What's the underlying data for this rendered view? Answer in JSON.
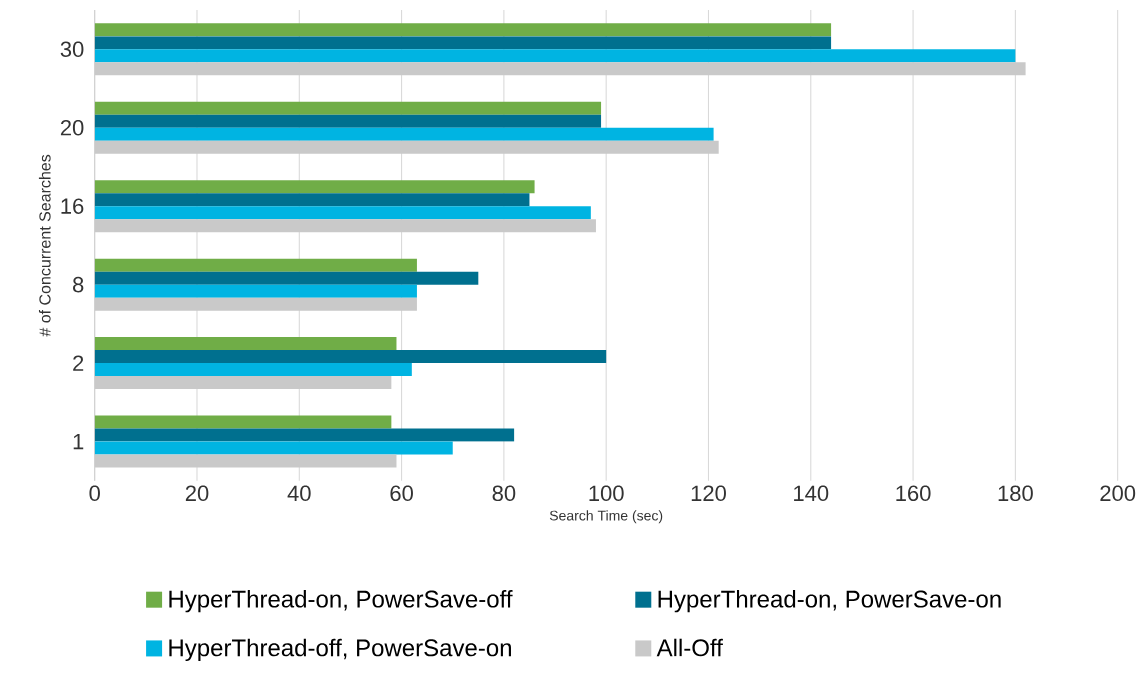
{
  "chart_data": {
    "type": "bar",
    "orientation": "horizontal",
    "xlabel": "Search Time (sec)",
    "ylabel": "# of Concurrent Searches",
    "categories": [
      "30",
      "20",
      "16",
      "8",
      "2",
      "1"
    ],
    "series": [
      {
        "name": "HyperThread-on, PowerSave-off",
        "color": "#70ad47",
        "values": [
          144,
          99,
          86,
          63,
          59,
          58
        ]
      },
      {
        "name": "HyperThread-on, PowerSave-on",
        "color": "#00708f",
        "values": [
          144,
          99,
          85,
          75,
          100,
          82
        ]
      },
      {
        "name": "HyperThread-off, PowerSave-on",
        "color": "#00b4e2",
        "values": [
          180,
          121,
          97,
          63,
          62,
          70
        ]
      },
      {
        "name": "All-Off",
        "color": "#c9c9c9",
        "values": [
          182,
          122,
          98,
          63,
          58,
          59
        ]
      }
    ],
    "xlim": [
      0,
      200
    ],
    "xticks": [
      0,
      20,
      40,
      60,
      80,
      100,
      120,
      140,
      160,
      180,
      200
    ],
    "grid": "x",
    "legend": "bottom"
  }
}
